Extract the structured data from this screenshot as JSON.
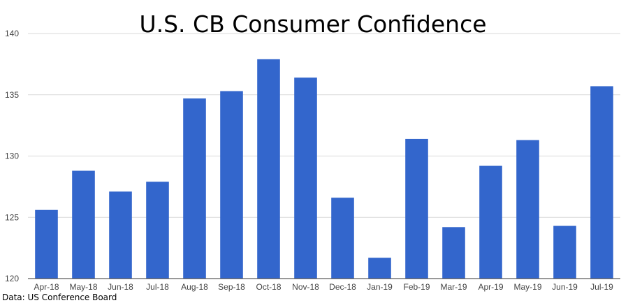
{
  "chart_data": {
    "type": "bar",
    "title": "U.S. CB Consumer Confidence",
    "xlabel": "",
    "ylabel": "",
    "categories": [
      "Apr-18",
      "May-18",
      "Jun-18",
      "Jul-18",
      "Aug-18",
      "Sep-18",
      "Oct-18",
      "Nov-18",
      "Dec-18",
      "Jan-19",
      "Feb-19",
      "Mar-19",
      "Apr-19",
      "May-19",
      "Jun-19",
      "Jul-19"
    ],
    "values": [
      125.6,
      128.8,
      127.1,
      127.9,
      134.7,
      135.3,
      137.9,
      136.4,
      126.6,
      121.7,
      131.4,
      124.2,
      129.2,
      131.3,
      124.3,
      135.7
    ],
    "ylim": [
      120,
      140
    ],
    "yticks": [
      120,
      125,
      130,
      135,
      140
    ],
    "grid": true,
    "legend": "none",
    "bar_color": "#3366cc"
  },
  "source_note": "Data: US Conference Board"
}
